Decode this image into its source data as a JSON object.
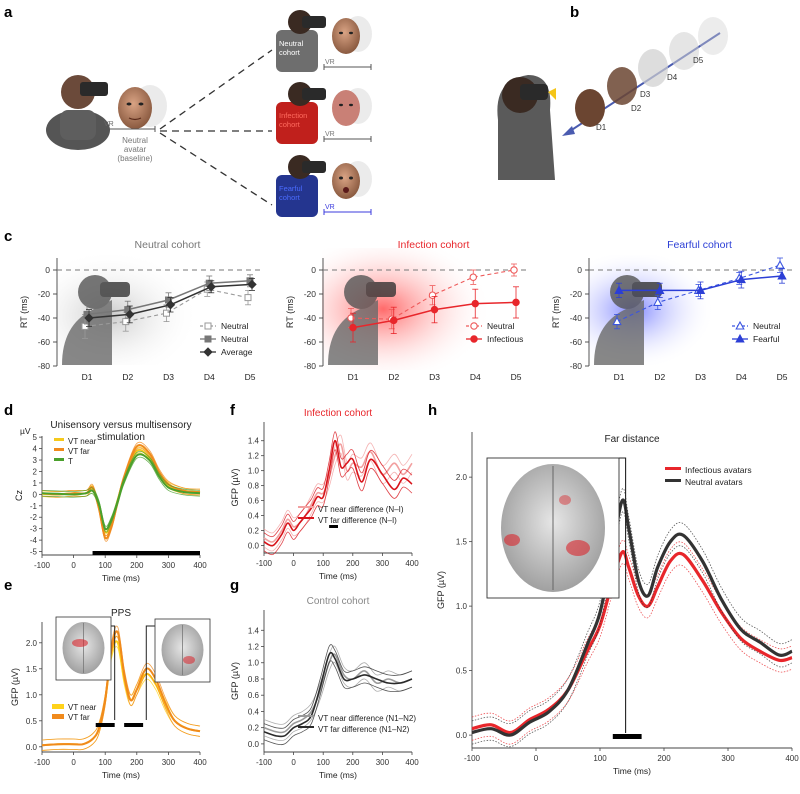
{
  "panels": {
    "a": "a",
    "b": "b",
    "c": "c",
    "d": "d",
    "e": "e",
    "f": "f",
    "g": "g",
    "h": "h"
  },
  "panel_a": {
    "baseline_vr": "VR",
    "baseline_caption": [
      "Neutral",
      "avatar",
      "(baseline)"
    ],
    "cohorts": [
      {
        "lines": [
          "Neutral",
          "cohort"
        ],
        "vr": "VR",
        "shirt": "#6e6e6e",
        "textcolor": "#ffffff",
        "vrcolor": "#777777"
      },
      {
        "lines": [
          "Infection",
          "cohort"
        ],
        "vr": "VR",
        "shirt": "#c0201c",
        "textcolor": "#ff3b30",
        "vrcolor": "#777777"
      },
      {
        "lines": [
          "Fearful",
          "cohort"
        ],
        "vr": "VR",
        "shirt": "#24358f",
        "textcolor": "#3b5bff",
        "vrcolor": "#3b3bdd"
      }
    ]
  },
  "panel_b": {
    "distances": [
      "D1",
      "D2",
      "D3",
      "D4",
      "D5"
    ]
  },
  "colors": {
    "neutral_gray": "#8a8a8a",
    "infection": "#e8262b",
    "fearful": "#2c3fd6",
    "orange": "#f08a1c",
    "yellow": "#ffd21a",
    "green": "#4aa02c"
  },
  "chart_data": [
    {
      "id": "c1",
      "type": "line",
      "title": "Neutral cohort",
      "title_color": "#777777",
      "ylabel": "RT (ms)",
      "ylim": [
        -80,
        10
      ],
      "yticks": [
        0,
        -20,
        -40,
        -60,
        -80
      ],
      "categories": [
        "D1",
        "D2",
        "D3",
        "D4",
        "D5"
      ],
      "series": [
        {
          "name": "Neutral",
          "style": "open-square-dashed",
          "color": "#999999",
          "values": [
            -47,
            -43,
            -36,
            -16,
            -23
          ],
          "err": [
            10,
            8,
            7,
            6,
            6
          ]
        },
        {
          "name": "Neutral",
          "style": "filled-square",
          "color": "#777777",
          "values": [
            -37,
            -33,
            -25,
            -11,
            -9
          ],
          "err": [
            8,
            7,
            6,
            6,
            5
          ]
        },
        {
          "name": "Average",
          "style": "diamond-solid",
          "color": "#333333",
          "values": [
            -40,
            -37,
            -29,
            -14,
            -12
          ],
          "err": [
            7,
            7,
            6,
            5,
            5
          ]
        }
      ]
    },
    {
      "id": "c2",
      "type": "line",
      "title": "Infection cohort",
      "title_color": "#e8262b",
      "ylabel": "RT (ms)",
      "ylim": [
        -80,
        10
      ],
      "yticks": [
        0,
        -20,
        -40,
        -60,
        -80
      ],
      "categories": [
        "D1",
        "D2",
        "D3",
        "D4",
        "D5"
      ],
      "series": [
        {
          "name": "Neutral",
          "style": "open-circle-dashed",
          "color": "#ee5a5a",
          "values": [
            -40,
            -41,
            -21,
            -6,
            0
          ],
          "err": [
            8,
            8,
            8,
            6,
            5
          ]
        },
        {
          "name": "Infectious",
          "style": "filled-circle",
          "color": "#e8262b",
          "values": [
            -48,
            -42,
            -33,
            -28,
            -27
          ],
          "err": [
            12,
            11,
            11,
            12,
            13
          ]
        }
      ]
    },
    {
      "id": "c3",
      "type": "line",
      "title": "Fearful cohort",
      "title_color": "#2c3fd6",
      "ylabel": "RT (ms)",
      "ylim": [
        -80,
        10
      ],
      "yticks": [
        0,
        -20,
        -40,
        -60,
        -80
      ],
      "categories": [
        "D1",
        "D2",
        "D3",
        "D4",
        "D5"
      ],
      "series": [
        {
          "name": "Neutral",
          "style": "open-triangle-dashed",
          "color": "#3b55e0",
          "values": [
            -43,
            -27,
            -17,
            -7,
            4
          ],
          "err": [
            6,
            6,
            5,
            5,
            6
          ]
        },
        {
          "name": "Fearful",
          "style": "filled-triangle",
          "color": "#2c3fd6",
          "values": [
            -17,
            -17,
            -17,
            -8,
            -5
          ],
          "err": [
            6,
            6,
            7,
            7,
            6
          ]
        }
      ]
    },
    {
      "id": "d",
      "type": "line",
      "title": "Unisensory versus multisensory",
      "title2": "stimulation",
      "ylabel": "Cz",
      "yunit": "µV",
      "xlabel": "Time (ms)",
      "xlim": [
        -100,
        400
      ],
      "ylim": [
        -5.3,
        5.1
      ],
      "xticks": [
        -100,
        0,
        100,
        200,
        300,
        400
      ],
      "yticks": [
        5,
        4,
        3,
        2,
        1,
        0,
        -1,
        -2,
        -3,
        -4,
        -5
      ],
      "sig_bar": [
        60,
        400
      ],
      "series": [
        {
          "name": "VT near",
          "color": "#f5c91c",
          "x": [
            -100,
            -50,
            0,
            40,
            60,
            80,
            100,
            120,
            140,
            160,
            200,
            240,
            270,
            300,
            350,
            400
          ],
          "values": [
            0.05,
            0.0,
            0.1,
            0.1,
            0.5,
            -1.0,
            -3.3,
            -2.4,
            -0.5,
            1.3,
            3.8,
            3.2,
            1.8,
            0.8,
            0.3,
            0.2
          ]
        },
        {
          "name": "VT far",
          "color": "#f08a1c",
          "x": [
            -100,
            -50,
            0,
            40,
            60,
            80,
            100,
            120,
            140,
            160,
            200,
            240,
            270,
            300,
            350,
            400
          ],
          "values": [
            0.1,
            0.0,
            0.1,
            0.1,
            0.6,
            -1.2,
            -3.8,
            -2.8,
            -0.6,
            1.5,
            4.2,
            3.6,
            2.0,
            0.9,
            0.3,
            0.2
          ]
        },
        {
          "name": "T",
          "color": "#4aa02c",
          "x": [
            -100,
            -50,
            0,
            40,
            60,
            80,
            100,
            120,
            140,
            160,
            200,
            240,
            270,
            300,
            350,
            400
          ],
          "values": [
            0.1,
            0.05,
            0.0,
            0.1,
            0.3,
            -0.8,
            -3.0,
            -2.2,
            -0.6,
            1.2,
            3.4,
            3.0,
            1.6,
            0.6,
            0.2,
            0.1
          ]
        }
      ]
    },
    {
      "id": "e",
      "type": "line",
      "title": "PPS",
      "ylabel": "GFP (µV)",
      "xlabel": "Time (ms)",
      "xlim": [
        -100,
        400
      ],
      "ylim": [
        -0.1,
        2.4
      ],
      "xticks": [
        -100,
        0,
        100,
        200,
        300,
        400
      ],
      "yticks": [
        0,
        0.5,
        1.0,
        1.5,
        2.0
      ],
      "sig_bars": [
        [
          70,
          130
        ],
        [
          160,
          220
        ]
      ],
      "series": [
        {
          "name": "VT near",
          "color": "#ffd21a",
          "x": [
            -100,
            -50,
            0,
            30,
            60,
            80,
            100,
            120,
            140,
            160,
            180,
            200,
            230,
            260,
            290,
            320,
            360,
            400
          ],
          "values": [
            0.03,
            0.05,
            0.05,
            0.05,
            0.15,
            0.35,
            0.9,
            1.8,
            2.0,
            1.3,
            0.9,
            1.1,
            1.4,
            1.2,
            0.8,
            0.5,
            0.35,
            0.3
          ]
        },
        {
          "name": "VT far",
          "color": "#f08a1c",
          "x": [
            -100,
            -50,
            0,
            30,
            60,
            80,
            100,
            120,
            140,
            160,
            180,
            200,
            230,
            260,
            290,
            320,
            360,
            400
          ],
          "values": [
            0.03,
            0.05,
            0.05,
            0.05,
            0.15,
            0.35,
            0.9,
            1.9,
            2.2,
            1.4,
            0.9,
            1.1,
            1.5,
            1.3,
            0.85,
            0.5,
            0.35,
            0.3
          ]
        }
      ]
    },
    {
      "id": "f",
      "type": "line",
      "title": "Infection cohort",
      "title_color": "#e8262b",
      "ylabel": "GFP (µV)",
      "xlabel": "Time (ms)",
      "xlim": [
        -100,
        400
      ],
      "ylim": [
        -0.1,
        1.65
      ],
      "xticks": [
        -100,
        0,
        100,
        200,
        300,
        400
      ],
      "yticks": [
        0,
        0.2,
        0.4,
        0.6,
        0.8,
        1.0,
        1.2,
        1.4
      ],
      "sig_bar": [
        120,
        150
      ],
      "series": [
        {
          "name": "VT near difference (N–I)",
          "color": "#f2a0a0",
          "x": [
            -100,
            -70,
            -40,
            -20,
            0,
            20,
            40,
            60,
            80,
            100,
            120,
            140,
            160,
            180,
            200,
            230,
            260,
            300,
            340,
            370,
            400
          ],
          "values": [
            0.1,
            0.05,
            0.2,
            0.35,
            0.25,
            0.3,
            0.4,
            0.55,
            0.7,
            0.7,
            0.9,
            1.2,
            1.35,
            1.0,
            1.1,
            1.05,
            1.25,
            0.95,
            1.1,
            0.95,
            1.1
          ]
        },
        {
          "name": "VT far difference (N–I)",
          "color": "#d8141b",
          "x": [
            -100,
            -70,
            -40,
            -20,
            0,
            20,
            40,
            60,
            80,
            100,
            120,
            140,
            160,
            180,
            200,
            230,
            260,
            300,
            340,
            370,
            400
          ],
          "values": [
            0.05,
            0.0,
            0.15,
            0.3,
            0.2,
            0.3,
            0.4,
            0.5,
            0.65,
            0.65,
            1.0,
            1.4,
            1.05,
            1.1,
            1.15,
            0.85,
            1.15,
            0.95,
            0.75,
            0.9,
            0.82
          ]
        }
      ]
    },
    {
      "id": "g",
      "type": "line",
      "title": "Control cohort",
      "title_color": "#888888",
      "ylabel": "GFP (µV)",
      "xlabel": "Time (ms)",
      "xlim": [
        -100,
        400
      ],
      "ylim": [
        -0.1,
        1.65
      ],
      "xticks": [
        -100,
        0,
        100,
        200,
        300,
        400
      ],
      "yticks": [
        0,
        0.2,
        0.4,
        0.6,
        0.8,
        1.0,
        1.2,
        1.4
      ],
      "series": [
        {
          "name": "VT near difference (N1–N2)",
          "color": "#9a9a9a",
          "x": [
            -100,
            -60,
            -30,
            0,
            30,
            60,
            90,
            120,
            140,
            170,
            200,
            240,
            280,
            320,
            360,
            400
          ],
          "values": [
            0.2,
            0.15,
            0.15,
            0.25,
            0.3,
            0.4,
            0.65,
            1.0,
            1.1,
            0.85,
            0.8,
            0.9,
            0.75,
            0.8,
            0.75,
            0.8
          ]
        },
        {
          "name": "VT far difference (N1–N2)",
          "color": "#2a2a2a",
          "x": [
            -100,
            -60,
            -30,
            0,
            30,
            60,
            90,
            120,
            140,
            170,
            200,
            240,
            280,
            320,
            360,
            400
          ],
          "values": [
            0.15,
            0.1,
            0.1,
            0.2,
            0.25,
            0.35,
            0.7,
            1.1,
            1.05,
            0.8,
            0.8,
            0.85,
            0.8,
            0.75,
            0.75,
            0.8
          ]
        }
      ]
    },
    {
      "id": "h",
      "type": "line",
      "title": "Far distance",
      "ylabel": "GFP (µV)",
      "xlabel": "Time (ms)",
      "xlim": [
        -100,
        400
      ],
      "ylim": [
        -0.1,
        2.35
      ],
      "xticks": [
        -100,
        0,
        100,
        200,
        300,
        400
      ],
      "yticks": [
        0,
        0.5,
        1.0,
        1.5,
        2.0
      ],
      "sig_bar": [
        120,
        165
      ],
      "series": [
        {
          "name": "Infectious avatars",
          "color": "#e8262b",
          "x": [
            -100,
            -70,
            -40,
            -10,
            20,
            50,
            80,
            100,
            120,
            135,
            145,
            160,
            175,
            190,
            210,
            230,
            260,
            290,
            320,
            350,
            380,
            400
          ],
          "values": [
            0.05,
            0.08,
            0.02,
            0.12,
            0.2,
            0.35,
            0.65,
            0.85,
            1.2,
            1.42,
            1.3,
            1.08,
            1.0,
            1.15,
            1.35,
            1.4,
            1.2,
            0.95,
            0.75,
            0.65,
            0.58,
            0.6
          ]
        },
        {
          "name": "Neutral avatars",
          "color": "#333333",
          "x": [
            -100,
            -70,
            -40,
            -10,
            20,
            50,
            80,
            100,
            120,
            135,
            145,
            160,
            175,
            190,
            210,
            230,
            260,
            290,
            320,
            350,
            380,
            400
          ],
          "values": [
            0.02,
            0.05,
            0.0,
            0.1,
            0.18,
            0.35,
            0.7,
            0.95,
            1.45,
            1.82,
            1.6,
            1.2,
            1.08,
            1.3,
            1.5,
            1.55,
            1.35,
            1.05,
            0.82,
            0.72,
            0.62,
            0.65
          ]
        }
      ]
    }
  ]
}
